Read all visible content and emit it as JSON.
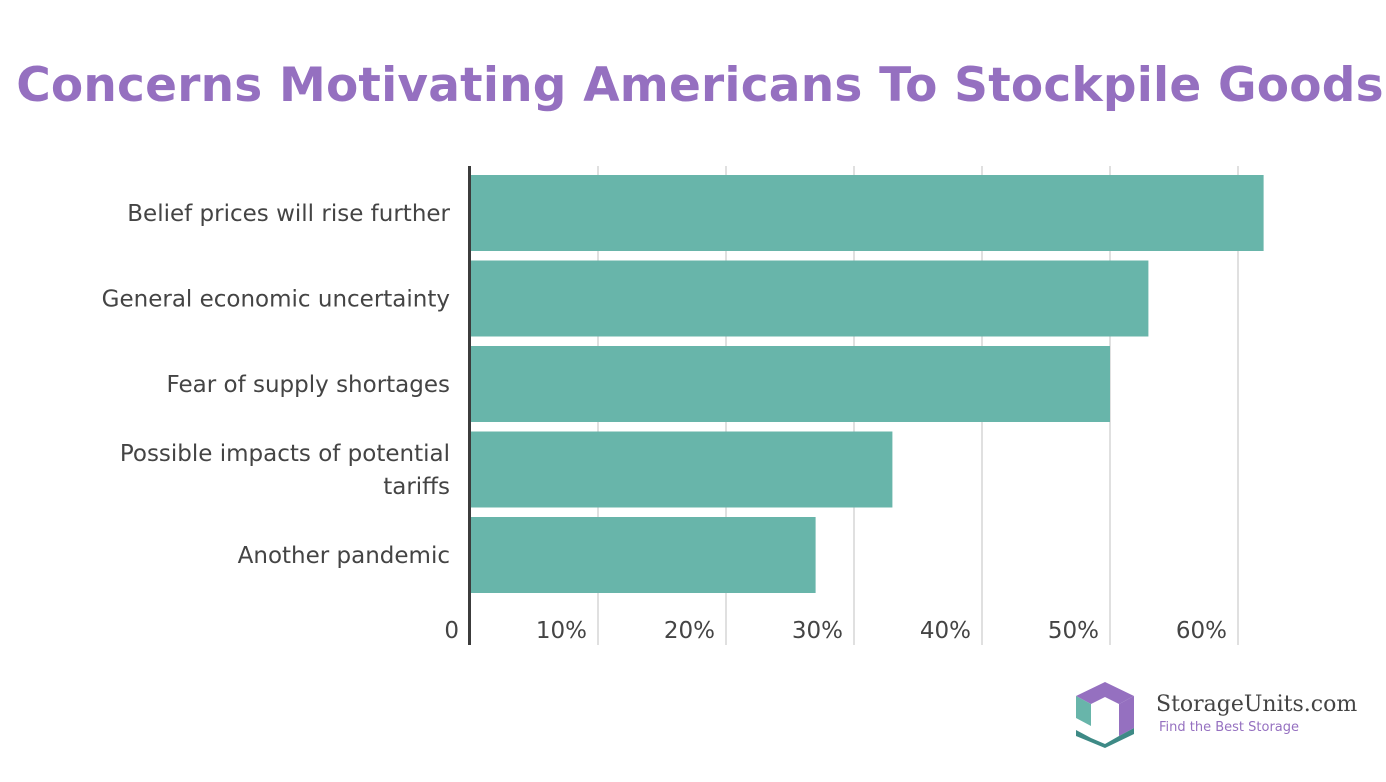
{
  "colors": {
    "title": "#9570c0",
    "bar": "#68b5aa",
    "grid": "#d6d6d6",
    "axis": "#3c3c3c",
    "logo_purple": "#9570c0",
    "logo_teal": "#68b5aa",
    "logo_dark_teal": "#3e8a86"
  },
  "chart_data": {
    "type": "bar",
    "orientation": "horizontal",
    "title": "Concerns Motivating Americans To Stockpile Goods",
    "categories": [
      [
        "Belief prices will rise further"
      ],
      [
        "General economic uncertainty"
      ],
      [
        "Fear of supply shortages"
      ],
      [
        "Possible impacts of potential",
        "tariffs"
      ],
      [
        "Another pandemic"
      ]
    ],
    "values": [
      62,
      53,
      50,
      33,
      27
    ],
    "xlim": [
      0,
      65
    ],
    "x_ticks": [
      0,
      10,
      20,
      30,
      40,
      50,
      60
    ],
    "x_tick_labels": [
      "0",
      "10%",
      "20%",
      "30%",
      "40%",
      "50%",
      "60%"
    ],
    "grid": true,
    "legend": false
  },
  "logo": {
    "name": "StorageUnits.com",
    "tagline": "Find the Best Storage",
    "icon": "hexagon-box-icon"
  }
}
